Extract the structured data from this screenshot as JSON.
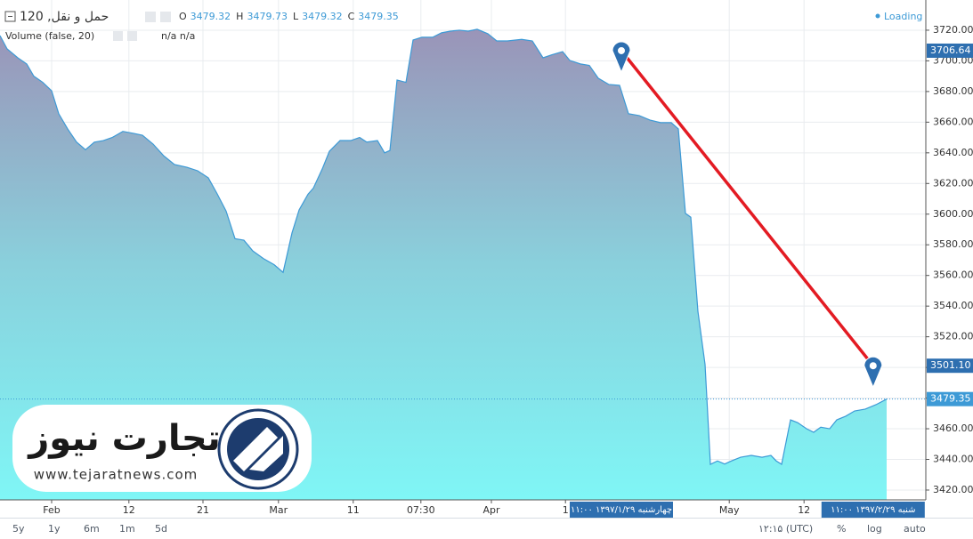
{
  "chart_data": {
    "type": "area",
    "header": {
      "title": "حمل و نقل, 120",
      "ohlc": [
        {
          "label": "O",
          "value": 3479.32
        },
        {
          "label": "H",
          "value": 3479.73
        },
        {
          "label": "L",
          "value": 3479.32
        },
        {
          "label": "C",
          "value": 3479.35
        }
      ],
      "volume": "Volume (false, 20)",
      "volume_values": "n/a n/a",
      "status": "Loading"
    },
    "series": [
      {
        "name": "حمل و نقل",
        "color": "#3d9ad6",
        "x": [
          0,
          1,
          2.5,
          3.75,
          4.75,
          6,
          7.25,
          8.25,
          9.5,
          10.75,
          12,
          13.25,
          14.5,
          15.75,
          17.25,
          18.75,
          20,
          21.5,
          23,
          24.5,
          26.25,
          27.75,
          29.25,
          30.5,
          31.75,
          33,
          34.25,
          35.5,
          37,
          38.5,
          39.75,
          41,
          42,
          43.25,
          44,
          45.25,
          46.25,
          47.75,
          49.25,
          50.5,
          51.5,
          53,
          54,
          54.75,
          55.75,
          57,
          58,
          59.25,
          60.75,
          62,
          63.25,
          64.5,
          65.75,
          67,
          68.5,
          69.75,
          71.25,
          73.25,
          74.75,
          76.25,
          77.5,
          79,
          80,
          81.5,
          82.75,
          84,
          85.5,
          87,
          88.25,
          89.75,
          91.25,
          92.75,
          94.25,
          95.25,
          96.25,
          97,
          98,
          99,
          99.75,
          100.75,
          101.75,
          102.75,
          104,
          105.5,
          107,
          108.25,
          109,
          109.75,
          111,
          112,
          113.25,
          114.25,
          115.25,
          116.5,
          117.5,
          118.75,
          120,
          121.5,
          123,
          124.5
        ],
        "values": [
          3716.5,
          3707.8,
          3702,
          3698,
          3690,
          3686,
          3680.5,
          3665.5,
          3655.6,
          3647,
          3642,
          3647,
          3648,
          3650,
          3654,
          3652.7,
          3651.5,
          3645.7,
          3638,
          3632.4,
          3630.6,
          3628.3,
          3623.7,
          3613.2,
          3602,
          3584,
          3583,
          3576,
          3571,
          3567,
          3562,
          3587.7,
          3602.8,
          3613,
          3617,
          3629.5,
          3641,
          3648,
          3648,
          3650,
          3647,
          3648,
          3640,
          3641.5,
          3687.5,
          3686,
          3713.6,
          3715.4,
          3715.4,
          3718.3,
          3719.4,
          3720,
          3719.4,
          3720.6,
          3717.7,
          3713,
          3713,
          3714,
          3713,
          3702,
          3704,
          3706,
          3700.3,
          3698,
          3697,
          3688.7,
          3684.6,
          3684,
          3665.5,
          3664.3,
          3661.4,
          3659.7,
          3659.7,
          3655.6,
          3600.5,
          3598,
          3536.6,
          3502,
          3436.8,
          3439,
          3437,
          3439.1,
          3441.4,
          3442.6,
          3441.4,
          3442.6,
          3439,
          3436.8,
          3465.8,
          3464,
          3460,
          3457.7,
          3461,
          3460,
          3465.8,
          3468.2,
          3471.6,
          3472.8,
          3475.7,
          3479.35
        ]
      }
    ],
    "last_price": {
      "value": 3479.35,
      "color": "#3d9ad6"
    },
    "trend_line": {
      "color": "#e31b23",
      "x": [
        87.25,
        122.6
      ],
      "values": [
        3706.64,
        3501.1
      ],
      "value_labels": [
        "3706.64",
        "3501.10"
      ],
      "date_labels": [
        "چهارشنبه ۱۳۹۷/۱/۲۹ ۱۱:۰۰",
        "شنبه ۱۳۹۷/۲/۲۹ ۱۱:۰۰"
      ]
    },
    "xlim": [
      0,
      130
    ],
    "xticks": [
      {
        "value": 7.25,
        "label": "Feb"
      },
      {
        "value": 18.1,
        "label": "12"
      },
      {
        "value": 28.5,
        "label": "21"
      },
      {
        "value": 39.1,
        "label": "Mar"
      },
      {
        "value": 49.6,
        "label": "11"
      },
      {
        "value": 59.1,
        "label": "07:30"
      },
      {
        "value": 69,
        "label": "Apr"
      },
      {
        "value": 79.4,
        "label": "1"
      },
      {
        "value": 102.4,
        "label": "May"
      },
      {
        "value": 112.9,
        "label": "12"
      }
    ],
    "ylim": [
      3413.6,
      3739.7
    ],
    "yticks": [
      {
        "value": 3420,
        "label": "3420.00"
      },
      {
        "value": 3440,
        "label": "3440.00"
      },
      {
        "value": 3460,
        "label": "3460.00"
      },
      {
        "value": 3480,
        "label": "3480.00"
      },
      {
        "value": 3500,
        "label": "3500.00"
      },
      {
        "value": 3520,
        "label": "3520.00"
      },
      {
        "value": 3540,
        "label": "3540.00"
      },
      {
        "value": 3560,
        "label": "3560.00"
      },
      {
        "value": 3580,
        "label": "3580.00"
      },
      {
        "value": 3600,
        "label": "3600.00"
      },
      {
        "value": 3620,
        "label": "3620.00"
      },
      {
        "value": 3640,
        "label": "3640.00"
      },
      {
        "value": 3660,
        "label": "3660.00"
      },
      {
        "value": 3680,
        "label": "3680.00"
      },
      {
        "value": 3700,
        "label": "3700.00"
      },
      {
        "value": 3720,
        "label": "3720.00"
      }
    ],
    "grid": true,
    "watermark": {
      "title": "تجارت نیوز",
      "url": "www.tejaratnews.com"
    },
    "toolbar": {
      "ranges": [
        "5y",
        "1y",
        "6m",
        "1m",
        "5d"
      ],
      "clock": "۱۲:۱۵ (UTC)",
      "options": [
        "%",
        "log",
        "auto"
      ]
    }
  }
}
